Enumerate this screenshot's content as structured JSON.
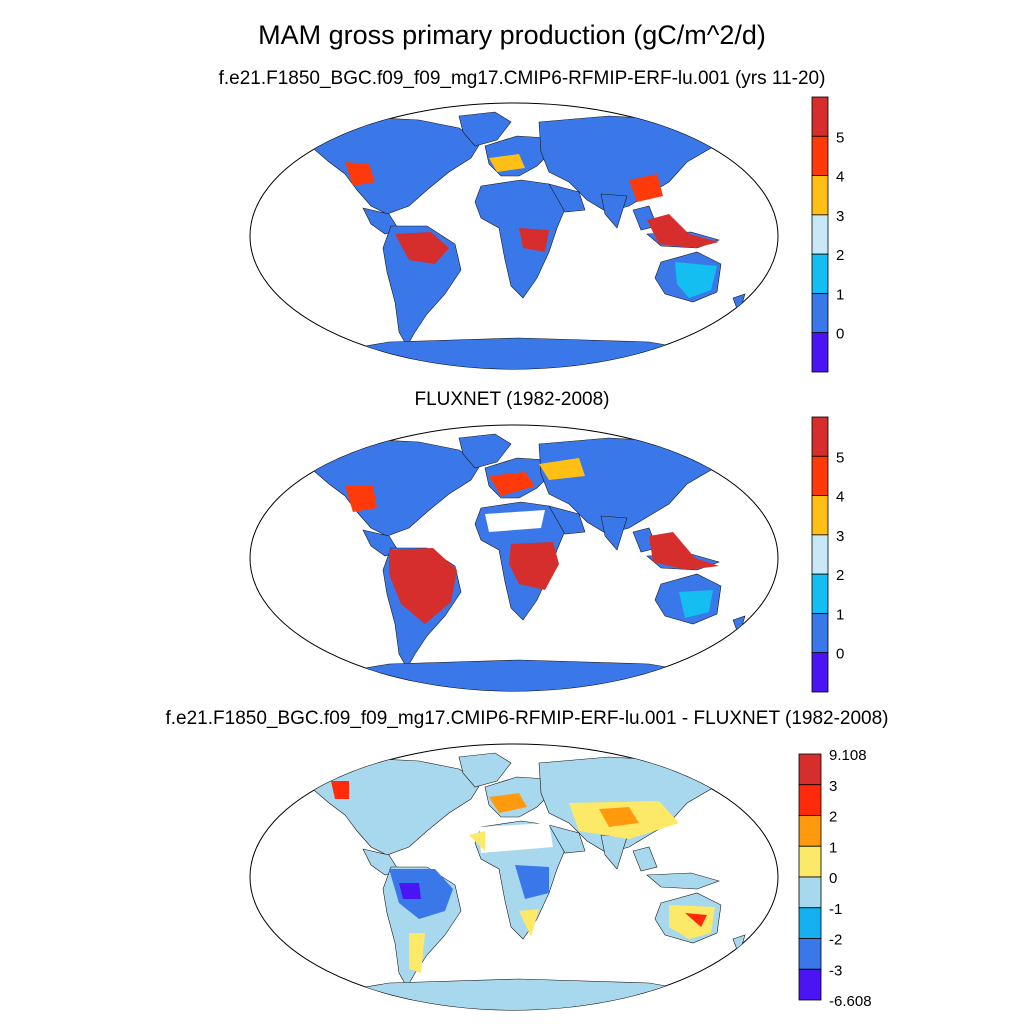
{
  "main_title": "MAM gross primary production (gC/m^2/d)",
  "panels": [
    {
      "title": "f.e21.F1850_BGC.f09_f09_mg17.CMIP6-RFMIP-ERF-lu.001 (yrs 11-20)",
      "colorbar": {
        "labels": [
          "5",
          "4",
          "3",
          "2",
          "1",
          "0"
        ],
        "colors_top_to_bottom": [
          "#d62d2d",
          "#ff3a0a",
          "#ffbf14",
          "#c8e8f8",
          "#14bef0",
          "#3a78ea",
          "#4a14f5"
        ]
      }
    },
    {
      "title": "FLUXNET (1982-2008)",
      "colorbar": {
        "labels": [
          "5",
          "4",
          "3",
          "2",
          "1",
          "0"
        ],
        "colors_top_to_bottom": [
          "#d62d2d",
          "#ff3a0a",
          "#ffbf14",
          "#c8e8f8",
          "#14bef0",
          "#3a78ea",
          "#4a14f5"
        ]
      }
    },
    {
      "title": "f.e21.F1850_BGC.f09_f09_mg17.CMIP6-RFMIP-ERF-lu.001 - FLUXNET (1982-2008)",
      "colorbar": {
        "labels": [
          "9.108",
          "3",
          "2",
          "1",
          "0",
          "-1",
          "-2",
          "-3",
          "-6.608"
        ],
        "colors_top_to_bottom": [
          "#d62d2d",
          "#ff2a0a",
          "#ff9a0f",
          "#fce968",
          "#a8d8ee",
          "#14b0f0",
          "#3a78ea",
          "#4a14f5"
        ]
      }
    }
  ]
}
